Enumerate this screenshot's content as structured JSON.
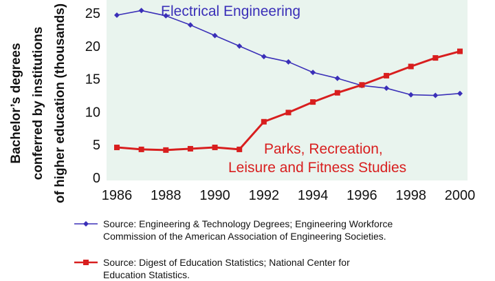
{
  "chart_data": {
    "type": "line",
    "x": [
      1986,
      1987,
      1988,
      1989,
      1990,
      1991,
      1992,
      1993,
      1994,
      1995,
      1996,
      1997,
      1998,
      1999,
      2000
    ],
    "series": [
      {
        "name": "Electrical Engineering",
        "color": "#3a2fb8",
        "marker": "diamond",
        "values": [
          24.7,
          25.4,
          24.6,
          23.2,
          21.6,
          20.0,
          18.4,
          17.6,
          16.0,
          15.1,
          14.0,
          13.6,
          12.6,
          12.5,
          12.8
        ]
      },
      {
        "name": "Parks, Recreation, Leisure and Fitness Studies",
        "color": "#d81e1e",
        "marker": "square",
        "values": [
          4.6,
          4.3,
          4.2,
          4.4,
          4.6,
          4.3,
          8.5,
          9.9,
          11.5,
          12.9,
          14.1,
          15.5,
          16.9,
          18.2,
          19.2
        ]
      }
    ],
    "ylim": [
      0,
      27
    ],
    "xlim": [
      1986,
      2000
    ],
    "xticks": [
      "1986",
      "1988",
      "1990",
      "1992",
      "1994",
      "1996",
      "1998",
      "2000"
    ],
    "yticks": [
      "0",
      "5",
      "10",
      "15",
      "20",
      "25"
    ],
    "ylabel_lines": [
      "Bachelor’s degrees",
      "conferred by institutions",
      "of higher education (thousands)"
    ],
    "annotations": {
      "ee": "Electrical Engineering",
      "parks_line1": "Parks, Recreation,",
      "parks_line2": "Leisure and Fitness Studies"
    },
    "grid": false,
    "plot_background": "#e9f4ee"
  },
  "legend": {
    "items": [
      {
        "marker": "diamond",
        "color": "#3a2fb8",
        "line1": "Source: Engineering & Technology Degrees;  Engineering Workforce",
        "line2": "Commission of the American Association of Engineering Societies."
      },
      {
        "marker": "square",
        "color": "#d81e1e",
        "line1": "Source: Digest of Education Statistics;  National Center for",
        "line2": "Education Statistics."
      }
    ]
  }
}
